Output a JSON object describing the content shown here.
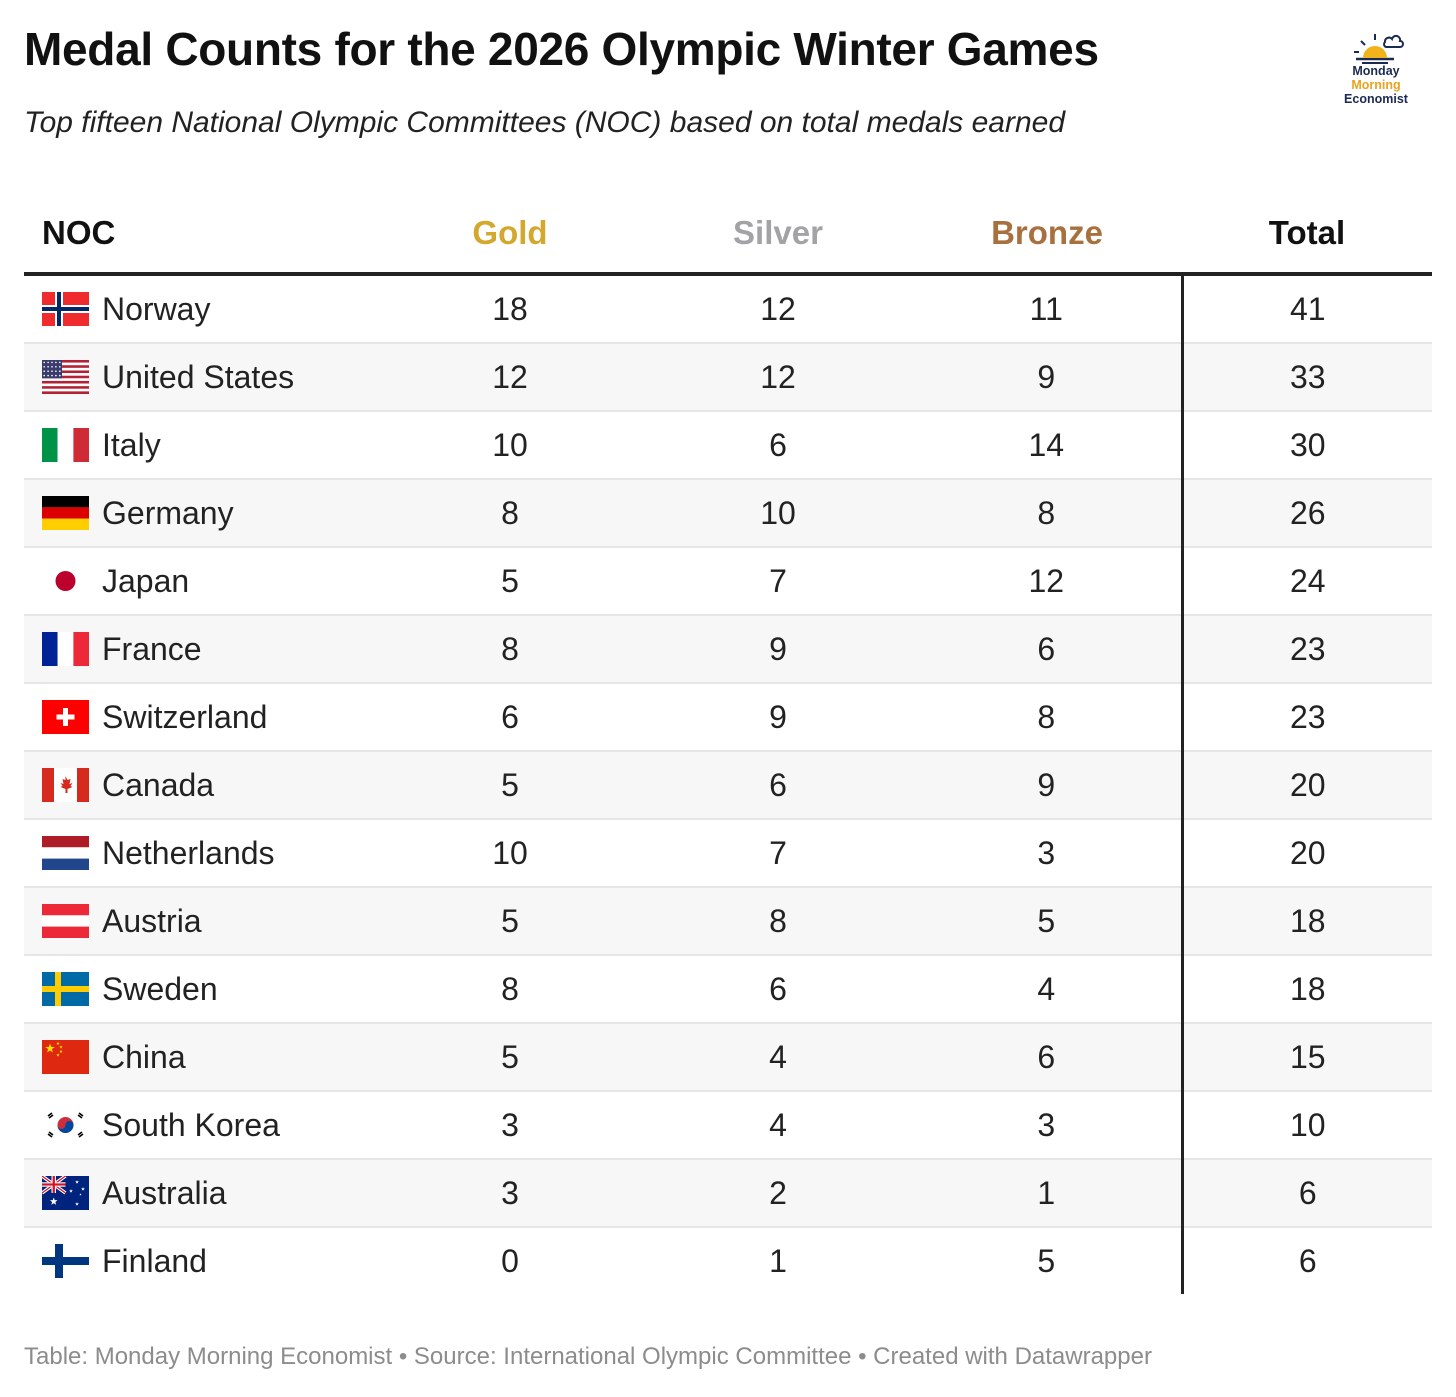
{
  "title": "Medal Counts for the 2026 Olympic Winter Games",
  "subtitle": "Top fifteen National Olympic Committees (NOC) based on total medals earned",
  "logo": {
    "line1": "Monday",
    "line2": "Morning",
    "line3": "Economist",
    "icon": "sun-cloud-icon"
  },
  "colors": {
    "gold": "#d4a82e",
    "silver": "#a3a3a6",
    "bronze": "#a8703f"
  },
  "footer": "Table: Monday Morning Economist • Source: International Olympic Committee  • Created with Datawrapper",
  "chart_data": {
    "type": "table",
    "title": "Medal Counts for the 2026 Olympic Winter Games",
    "subtitle": "Top fifteen National Olympic Committees (NOC) based on total medals earned",
    "columns": [
      "NOC",
      "Gold",
      "Silver",
      "Bronze",
      "Total"
    ],
    "rows": [
      {
        "noc": "Norway",
        "flag": "norway-flag-icon",
        "gold": 18,
        "silver": 12,
        "bronze": 11,
        "total": 41
      },
      {
        "noc": "United States",
        "flag": "united-states-flag-icon",
        "gold": 12,
        "silver": 12,
        "bronze": 9,
        "total": 33
      },
      {
        "noc": "Italy",
        "flag": "italy-flag-icon",
        "gold": 10,
        "silver": 6,
        "bronze": 14,
        "total": 30
      },
      {
        "noc": "Germany",
        "flag": "germany-flag-icon",
        "gold": 8,
        "silver": 10,
        "bronze": 8,
        "total": 26
      },
      {
        "noc": "Japan",
        "flag": "japan-flag-icon",
        "gold": 5,
        "silver": 7,
        "bronze": 12,
        "total": 24
      },
      {
        "noc": "France",
        "flag": "france-flag-icon",
        "gold": 8,
        "silver": 9,
        "bronze": 6,
        "total": 23
      },
      {
        "noc": "Switzerland",
        "flag": "switzerland-flag-icon",
        "gold": 6,
        "silver": 9,
        "bronze": 8,
        "total": 23
      },
      {
        "noc": "Canada",
        "flag": "canada-flag-icon",
        "gold": 5,
        "silver": 6,
        "bronze": 9,
        "total": 20
      },
      {
        "noc": "Netherlands",
        "flag": "netherlands-flag-icon",
        "gold": 10,
        "silver": 7,
        "bronze": 3,
        "total": 20
      },
      {
        "noc": "Austria",
        "flag": "austria-flag-icon",
        "gold": 5,
        "silver": 8,
        "bronze": 5,
        "total": 18
      },
      {
        "noc": "Sweden",
        "flag": "sweden-flag-icon",
        "gold": 8,
        "silver": 6,
        "bronze": 4,
        "total": 18
      },
      {
        "noc": "China",
        "flag": "china-flag-icon",
        "gold": 5,
        "silver": 4,
        "bronze": 6,
        "total": 15
      },
      {
        "noc": "South Korea",
        "flag": "south-korea-flag-icon",
        "gold": 3,
        "silver": 4,
        "bronze": 3,
        "total": 10
      },
      {
        "noc": "Australia",
        "flag": "australia-flag-icon",
        "gold": 3,
        "silver": 2,
        "bronze": 1,
        "total": 6
      },
      {
        "noc": "Finland",
        "flag": "finland-flag-icon",
        "gold": 0,
        "silver": 1,
        "bronze": 5,
        "total": 6
      }
    ]
  }
}
